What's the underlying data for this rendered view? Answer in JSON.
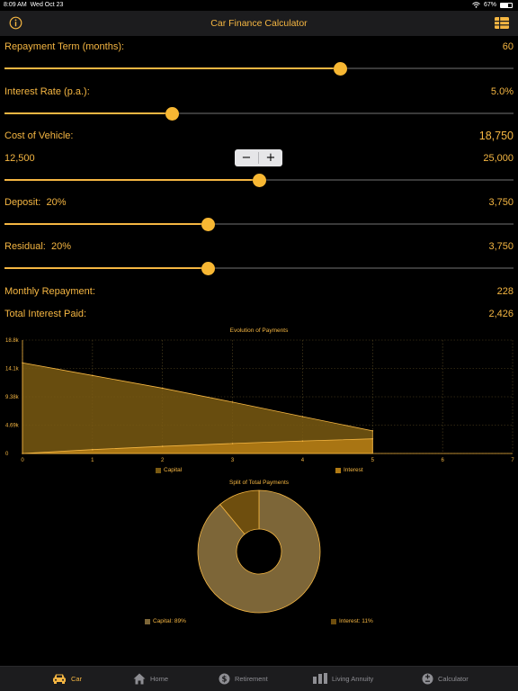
{
  "status": {
    "time": "8:09 AM",
    "date": "Wed Oct 23",
    "battery": "67%",
    "battery_level": 0.67
  },
  "nav": {
    "title": "Car Finance Calculator",
    "left_icon": "info-icon",
    "right_icon": "list-grid-icon"
  },
  "term": {
    "label": "Repayment Term (months):",
    "value": "60",
    "fraction": 0.66
  },
  "rate": {
    "label": "Interest Rate (p.a.):",
    "value": "5.0%",
    "fraction": 0.33
  },
  "cost": {
    "label": "Cost of Vehicle:",
    "value": "18,750",
    "min": "12,500",
    "max": "25,000",
    "fraction": 0.5,
    "decrement": "−",
    "increment": "+"
  },
  "deposit": {
    "label": "Deposit:",
    "percent": "20%",
    "value": "3,750",
    "fraction": 0.4
  },
  "residual": {
    "label": "Residual:",
    "percent": "20%",
    "value": "3,750",
    "fraction": 0.4
  },
  "results": {
    "monthly_label": "Monthly Repayment:",
    "monthly_value": "228",
    "interest_label": "Total Interest Paid:",
    "interest_value": "2,426"
  },
  "chart_data": [
    {
      "type": "area",
      "title": "Evolution of Payments",
      "x": [
        0,
        1,
        2,
        3,
        4,
        5
      ],
      "x_ticks": [
        "0",
        "1",
        "2",
        "3",
        "4",
        "5",
        "6",
        "7"
      ],
      "y_ticks": [
        "0",
        "4.69k",
        "9.38k",
        "14.1k",
        "18.8k"
      ],
      "xlim": [
        0,
        7
      ],
      "ylim": [
        0,
        18750
      ],
      "grid": true,
      "legend_position": "bottom",
      "series": [
        {
          "name": "Capital",
          "values": [
            15000,
            12900,
            10800,
            8500,
            6100,
            3750
          ],
          "color": "#7a5a12"
        },
        {
          "name": "Interest",
          "values": [
            0,
            640,
            1180,
            1650,
            2060,
            2426
          ],
          "color": "#b07a14"
        }
      ]
    },
    {
      "type": "pie",
      "title": "Split of Total Payments",
      "legend_position": "bottom",
      "slices": [
        {
          "label": "Capital: 89%",
          "value": 89,
          "color": "#7d6638"
        },
        {
          "label": "Interest: 11%",
          "value": 11,
          "color": "#6e4e0e"
        }
      ]
    }
  ],
  "tabs": [
    {
      "label": "Car",
      "icon": "car-icon",
      "active": true
    },
    {
      "label": "Home",
      "icon": "house-icon",
      "active": false
    },
    {
      "label": "Retirement",
      "icon": "dollar-coin-icon",
      "active": false
    },
    {
      "label": "Living Annuity",
      "icon": "bar-chart-icon",
      "active": false
    },
    {
      "label": "Calculator",
      "icon": "plus-minus-icon",
      "active": false
    }
  ],
  "colors": {
    "accent": "#f5b642",
    "background": "#000000",
    "bar": "#1c1c1e"
  }
}
